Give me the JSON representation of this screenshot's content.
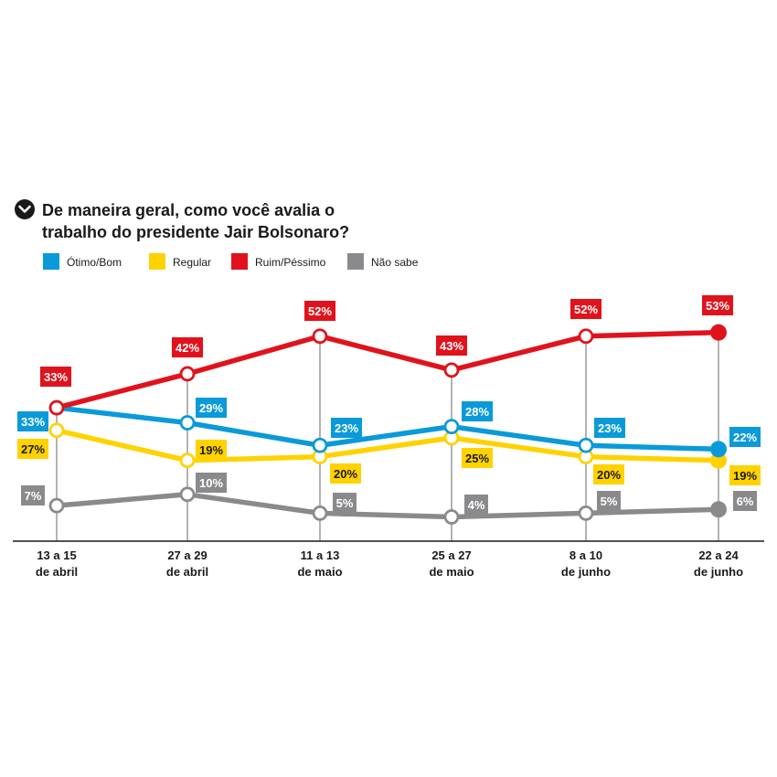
{
  "chart_data": {
    "type": "line",
    "title": "De maneira geral, como você avalia o trabalho do presidente Jair Bolsonaro?",
    "title_lines": [
      "De maneira geral, como você avalia o",
      "trabalho do presidente Jair Bolsonaro?"
    ],
    "title_icon": "chevron-down-icon",
    "categories": [
      [
        "13 a 15",
        "de abril"
      ],
      [
        "27 a 29",
        "de abril"
      ],
      [
        "11 a 13",
        "de maio"
      ],
      [
        "25 a 27",
        "de maio"
      ],
      [
        "8 a 10",
        "de junho"
      ],
      [
        "22 a 24",
        "de junho"
      ]
    ],
    "series": [
      {
        "name": "Ótimo/Bom",
        "color": "#0a9ad9",
        "text_color": "#ffffff",
        "values": [
          33,
          29,
          23,
          28,
          23,
          22
        ],
        "labels": [
          "33%",
          "29%",
          "23%",
          "28%",
          "23%",
          "22%"
        ]
      },
      {
        "name": "Regular",
        "color": "#ffd200",
        "text_color": "#1a1a1a",
        "values": [
          27,
          19,
          20,
          25,
          20,
          19
        ],
        "labels": [
          "27%",
          "19%",
          "20%",
          "25%",
          "20%",
          "19%"
        ]
      },
      {
        "name": "Ruim/Péssimo",
        "color": "#e0131d",
        "text_color": "#ffffff",
        "values": [
          33,
          42,
          52,
          43,
          52,
          53
        ],
        "labels": [
          "33%",
          "42%",
          "52%",
          "43%",
          "52%",
          "53%"
        ]
      },
      {
        "name": "Não sabe",
        "color": "#8a8a8d",
        "text_color": "#ffffff",
        "values": [
          7,
          10,
          5,
          4,
          5,
          6
        ],
        "labels": [
          "7%",
          "10%",
          "5%",
          "4%",
          "5%",
          "6%"
        ]
      }
    ],
    "legend_position": "top-left",
    "grid": "vertical lines at each survey date",
    "last_point_style": "filled",
    "other_points_style": "hollow"
  }
}
